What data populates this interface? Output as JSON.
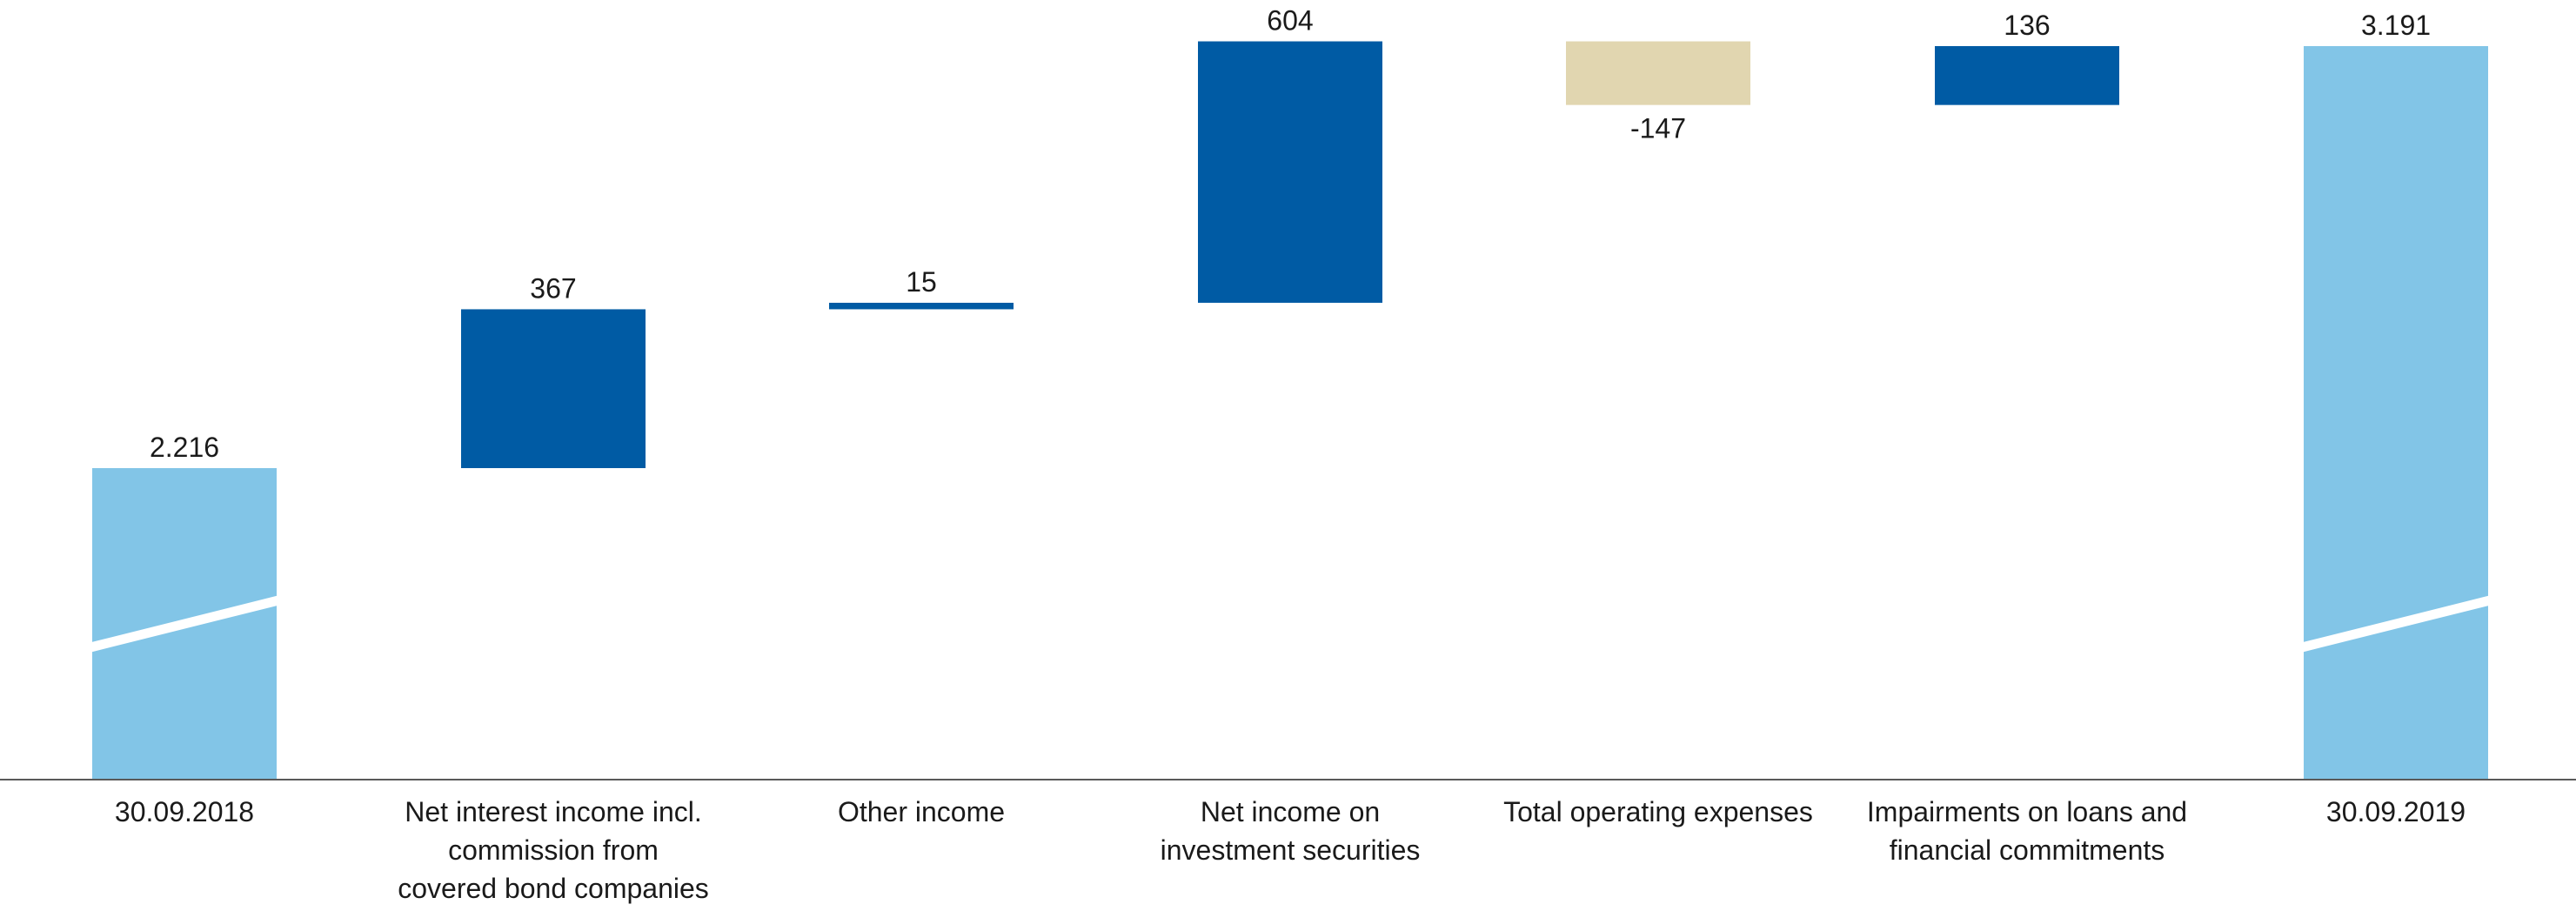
{
  "chart_data": {
    "type": "waterfall",
    "title": "",
    "xlabel": "",
    "ylabel": "",
    "axis_break": true,
    "grid": false,
    "categories": [
      [
        "30.09.2018"
      ],
      [
        "Net interest income incl.",
        "commission from",
        "covered bond companies"
      ],
      [
        "Other income"
      ],
      [
        "Net income on",
        "investment securities"
      ],
      [
        "Total operating expenses"
      ],
      [
        "Impairments on loans and",
        "financial commitments"
      ],
      [
        "30.09.2019"
      ]
    ],
    "steps": [
      {
        "kind": "total",
        "value": 2216,
        "label": "2.216"
      },
      {
        "kind": "delta",
        "value": 367,
        "label": "367"
      },
      {
        "kind": "delta",
        "value": 15,
        "label": "15"
      },
      {
        "kind": "delta",
        "value": 604,
        "label": "604"
      },
      {
        "kind": "delta",
        "value": -147,
        "label": "-147"
      },
      {
        "kind": "delta",
        "value": 136,
        "label": "136"
      },
      {
        "kind": "total",
        "value": 3191,
        "label": "3.191"
      }
    ],
    "colors": {
      "total": "#82c5e7",
      "increase": "#005ba4",
      "decrease": "#e1d6b0",
      "axis": "#595959",
      "break": "#ffffff"
    }
  }
}
